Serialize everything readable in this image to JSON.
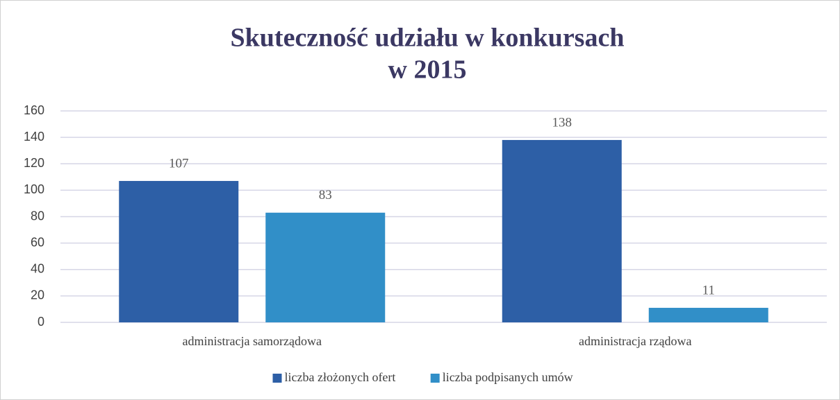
{
  "chart_data": {
    "type": "bar",
    "title": [
      "Skuteczność udziału w konkursach",
      "w 2015"
    ],
    "categories": [
      "administracja samorządowa",
      "administracja rządowa"
    ],
    "series": [
      {
        "name": "liczba złożonych ofert",
        "color": "#2d5fa6",
        "values": [
          107,
          138
        ]
      },
      {
        "name": "liczba podpisanych umów",
        "color": "#318fc8",
        "values": [
          83,
          11
        ]
      }
    ],
    "ylim": [
      0,
      160
    ],
    "yticks": [
      0,
      20,
      40,
      60,
      80,
      100,
      120,
      140,
      160
    ],
    "grid": true,
    "legend": "bottom"
  }
}
